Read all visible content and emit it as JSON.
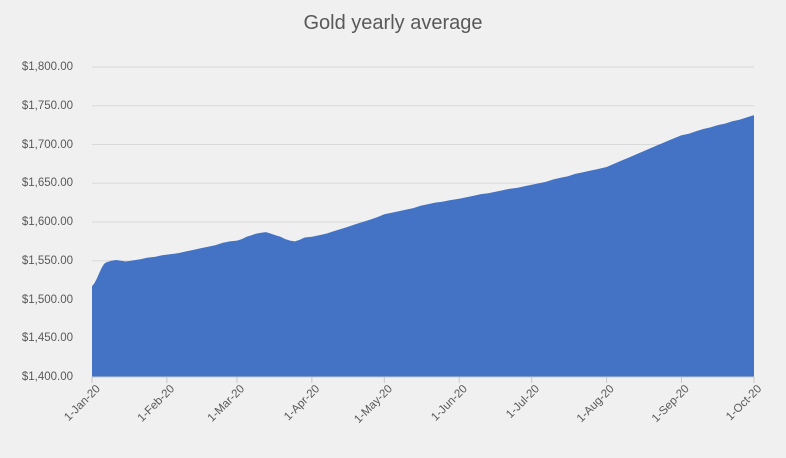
{
  "colors": {
    "background": "#f0f0f0",
    "series": "#4472c4",
    "gridline": "#d9d9d9",
    "axis": "#c9c9c9",
    "text": "#595959"
  },
  "chart_data": {
    "type": "area",
    "title": "Gold yearly average",
    "series_name": "Gold yearly average",
    "legend": "none",
    "grid": "horizontal",
    "ylim": [
      1400,
      1800
    ],
    "y_step": 50,
    "y_tick_labels": [
      "$1,400.00",
      "$1,450.00",
      "$1,500.00",
      "$1,550.00",
      "$1,600.00",
      "$1,650.00",
      "$1,700.00",
      "$1,750.00",
      "$1,800.00"
    ],
    "x_tick_labels": [
      "1-Jan-20",
      "1-Feb-20",
      "1-Mar-20",
      "1-Apr-20",
      "1-May-20",
      "1-Jun-20",
      "1-Jul-20",
      "1-Aug-20",
      "1-Sep-20",
      "1-Oct-20"
    ],
    "x_tick_days": [
      0,
      31,
      60,
      91,
      121,
      152,
      182,
      213,
      244,
      274
    ],
    "x_unit": "days since 1-Jan-20",
    "y_unit": "USD per ounce",
    "points": [
      [
        0,
        1517
      ],
      [
        1,
        1521
      ],
      [
        2,
        1527
      ],
      [
        3,
        1534
      ],
      [
        4,
        1541
      ],
      [
        5,
        1546
      ],
      [
        6,
        1548
      ],
      [
        8,
        1550
      ],
      [
        10,
        1551
      ],
      [
        12,
        1550
      ],
      [
        14,
        1549
      ],
      [
        16,
        1550
      ],
      [
        18,
        1551
      ],
      [
        20,
        1552
      ],
      [
        23,
        1554
      ],
      [
        26,
        1555
      ],
      [
        29,
        1557
      ],
      [
        31,
        1558
      ],
      [
        34,
        1559
      ],
      [
        36,
        1560
      ],
      [
        39,
        1562
      ],
      [
        42,
        1564
      ],
      [
        45,
        1566
      ],
      [
        48,
        1568
      ],
      [
        51,
        1570
      ],
      [
        54,
        1573
      ],
      [
        57,
        1575
      ],
      [
        60,
        1576
      ],
      [
        62,
        1578
      ],
      [
        64,
        1581
      ],
      [
        66,
        1583
      ],
      [
        68,
        1585
      ],
      [
        70,
        1586
      ],
      [
        72,
        1587
      ],
      [
        74,
        1585
      ],
      [
        76,
        1583
      ],
      [
        78,
        1581
      ],
      [
        80,
        1578
      ],
      [
        82,
        1576
      ],
      [
        84,
        1575
      ],
      [
        86,
        1577
      ],
      [
        88,
        1580
      ],
      [
        91,
        1581
      ],
      [
        94,
        1583
      ],
      [
        97,
        1585
      ],
      [
        100,
        1588
      ],
      [
        103,
        1591
      ],
      [
        106,
        1594
      ],
      [
        109,
        1597
      ],
      [
        112,
        1600
      ],
      [
        115,
        1603
      ],
      [
        118,
        1606
      ],
      [
        121,
        1610
      ],
      [
        124,
        1612
      ],
      [
        127,
        1614
      ],
      [
        130,
        1616
      ],
      [
        133,
        1618
      ],
      [
        136,
        1621
      ],
      [
        139,
        1623
      ],
      [
        142,
        1625
      ],
      [
        145,
        1626
      ],
      [
        148,
        1628
      ],
      [
        152,
        1630
      ],
      [
        155,
        1632
      ],
      [
        158,
        1634
      ],
      [
        161,
        1636
      ],
      [
        164,
        1637
      ],
      [
        167,
        1639
      ],
      [
        170,
        1641
      ],
      [
        173,
        1643
      ],
      [
        176,
        1644
      ],
      [
        179,
        1646
      ],
      [
        182,
        1648
      ],
      [
        185,
        1650
      ],
      [
        188,
        1652
      ],
      [
        191,
        1655
      ],
      [
        194,
        1657
      ],
      [
        197,
        1659
      ],
      [
        200,
        1662
      ],
      [
        203,
        1664
      ],
      [
        206,
        1666
      ],
      [
        209,
        1668
      ],
      [
        213,
        1671
      ],
      [
        216,
        1675
      ],
      [
        219,
        1679
      ],
      [
        222,
        1683
      ],
      [
        225,
        1687
      ],
      [
        228,
        1691
      ],
      [
        231,
        1695
      ],
      [
        234,
        1699
      ],
      [
        237,
        1703
      ],
      [
        240,
        1707
      ],
      [
        244,
        1712
      ],
      [
        247,
        1714
      ],
      [
        250,
        1717
      ],
      [
        253,
        1720
      ],
      [
        256,
        1722
      ],
      [
        259,
        1725
      ],
      [
        262,
        1727
      ],
      [
        265,
        1730
      ],
      [
        268,
        1732
      ],
      [
        271,
        1735
      ],
      [
        274,
        1738
      ]
    ]
  }
}
